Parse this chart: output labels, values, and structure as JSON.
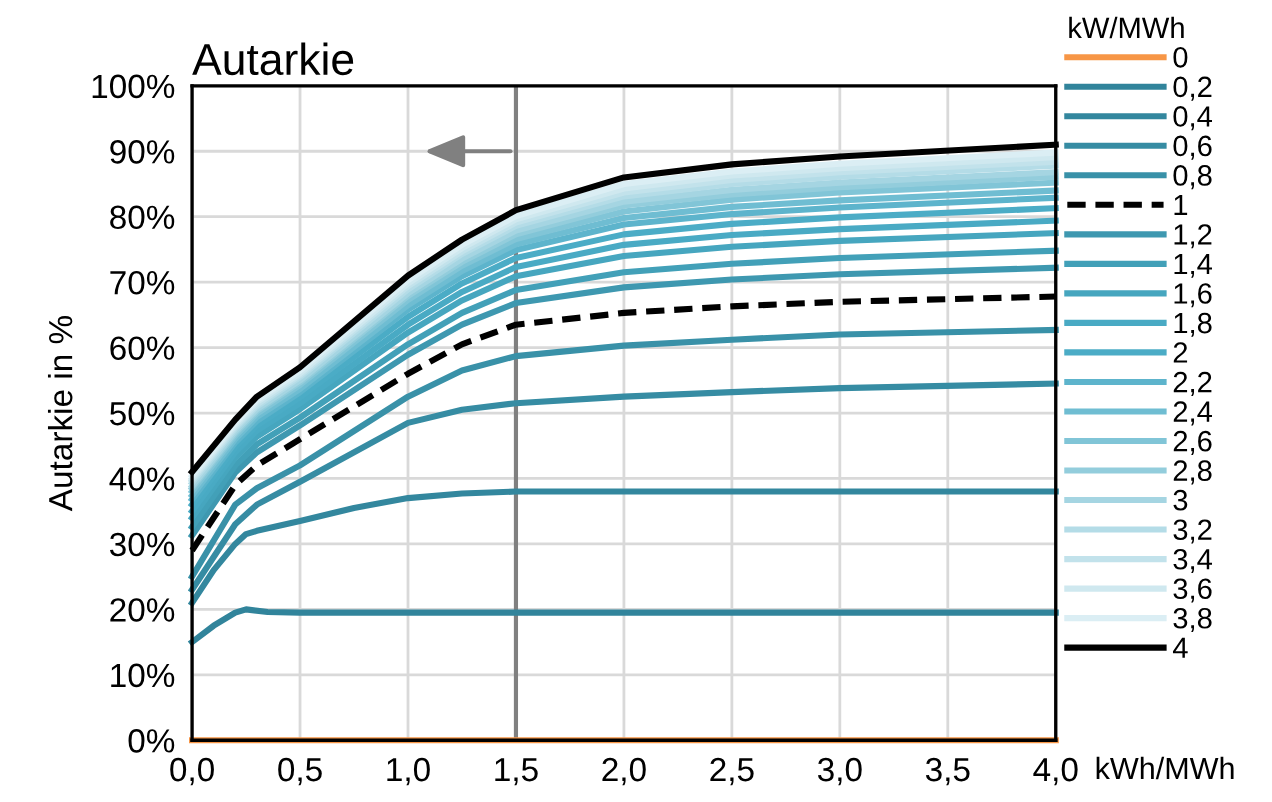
{
  "chart_data": {
    "type": "line",
    "title": "Autarkie",
    "xlabel": "kWh/MWh",
    "ylabel": "Autarkie in %",
    "legend_title": "kW/MWh",
    "legend": "right",
    "grid": true,
    "x": [
      0,
      0.2,
      0.3,
      0.5,
      1,
      1.25,
      1.5,
      2,
      2.5,
      3,
      4
    ],
    "xlim": [
      0,
      4
    ],
    "ylim": [
      0,
      100
    ],
    "xticks": [
      {
        "value": 0,
        "label": "0,0"
      },
      {
        "value": 0.5,
        "label": "0,5"
      },
      {
        "value": 1,
        "label": "1,0"
      },
      {
        "value": 1.5,
        "label": "1,5"
      },
      {
        "value": 2,
        "label": "2,0"
      },
      {
        "value": 2.5,
        "label": "2,5"
      },
      {
        "value": 3,
        "label": "3,0"
      },
      {
        "value": 3.5,
        "label": "3,5"
      },
      {
        "value": 4,
        "label": "4,0"
      }
    ],
    "yticks": [
      {
        "value": 0,
        "label": "0%"
      },
      {
        "value": 10,
        "label": "10%"
      },
      {
        "value": 20,
        "label": "20%"
      },
      {
        "value": 30,
        "label": "30%"
      },
      {
        "value": 40,
        "label": "40%"
      },
      {
        "value": 50,
        "label": "50%"
      },
      {
        "value": 60,
        "label": "60%"
      },
      {
        "value": 70,
        "label": "70%"
      },
      {
        "value": 80,
        "label": "80%"
      },
      {
        "value": 90,
        "label": "90%"
      },
      {
        "value": 100,
        "label": "100%"
      }
    ],
    "ref_lines": [
      {
        "axis": "x",
        "value": 1.5,
        "color": "#808080"
      }
    ],
    "series": [
      {
        "name": "0",
        "color": "#f79646",
        "values": [
          0,
          0,
          0,
          0,
          0,
          0,
          0,
          0,
          0,
          0,
          0
        ]
      },
      {
        "name": "0,2",
        "color": "#31849b",
        "x": [
          0,
          0.1,
          0.2,
          0.25,
          0.35,
          0.5,
          1,
          2,
          3,
          4
        ],
        "values": [
          15,
          17.5,
          19.5,
          20,
          19.6,
          19.5,
          19.5,
          19.5,
          19.5,
          19.5
        ]
      },
      {
        "name": "0,4",
        "color": "#33879e",
        "x": [
          0,
          0.1,
          0.2,
          0.25,
          0.3,
          0.5,
          0.75,
          1,
          1.25,
          1.5,
          2,
          3,
          4
        ],
        "values": [
          21,
          26,
          30,
          31.5,
          32,
          33.5,
          35.5,
          37,
          37.7,
          38,
          38,
          38,
          38
        ]
      },
      {
        "name": "0,6",
        "color": "#368ca3",
        "values": [
          23,
          33,
          36,
          39.5,
          48.5,
          50.5,
          51.5,
          52.5,
          53.2,
          53.8,
          54.5
        ]
      },
      {
        "name": "0,8",
        "color": "#3991a8",
        "values": [
          25,
          36,
          38.5,
          42,
          52.5,
          56.5,
          58.7,
          60.3,
          61.2,
          62,
          62.7
        ]
      },
      {
        "name": "1",
        "color": "#000000",
        "line_style": "dashed",
        "values": [
          29,
          39,
          42,
          46,
          56,
          60.5,
          63.5,
          65.3,
          66.3,
          67,
          67.8
        ]
      },
      {
        "name": "1,2",
        "color": "#3e98b0",
        "values": [
          31.3,
          40.9,
          44.0,
          48.1,
          58.9,
          63.5,
          66.8,
          69.2,
          70.4,
          71.2,
          72.2
        ]
      },
      {
        "name": "1,4",
        "color": "#42a0b8",
        "values": [
          32.6,
          42.0,
          45.2,
          49.3,
          60.5,
          65.3,
          68.8,
          71.5,
          72.8,
          73.7,
          74.8
        ]
      },
      {
        "name": "1,6",
        "color": "#46a6bf",
        "values": [
          34.0,
          43.2,
          46.4,
          50.6,
          62.3,
          67.2,
          70.9,
          74.0,
          75.4,
          76.3,
          77.5
        ]
      },
      {
        "name": "1,8",
        "color": "#49aac4",
        "values": [
          35.0,
          44.0,
          47.3,
          51.5,
          63.5,
          68.5,
          72.3,
          75.7,
          77.2,
          78.1,
          79.4
        ]
      },
      {
        "name": "2",
        "color": "#4bacc6",
        "values": [
          36.0,
          44.8,
          48.1,
          52.4,
          64.7,
          69.8,
          73.7,
          77.3,
          78.9,
          79.9,
          81.3
        ]
      },
      {
        "name": "2,2",
        "color": "#5db4cc",
        "values": [
          36.8,
          45.5,
          48.8,
          53.2,
          65.8,
          70.9,
          74.9,
          78.8,
          80.4,
          81.4,
          82.9
        ]
      },
      {
        "name": "2,4",
        "color": "#6fbdd2",
        "values": [
          37.4,
          46.0,
          49.4,
          53.7,
          66.5,
          71.7,
          75.8,
          79.8,
          81.5,
          82.5,
          84.0
        ]
      },
      {
        "name": "2,6",
        "color": "#81c5d7",
        "values": [
          38.0,
          46.5,
          49.9,
          54.3,
          67.3,
          72.5,
          76.6,
          80.8,
          82.6,
          83.7,
          85.2
        ]
      },
      {
        "name": "2,8",
        "color": "#93cddc",
        "values": [
          38.5,
          46.9,
          50.3,
          54.7,
          67.9,
          73.1,
          77.3,
          81.7,
          83.4,
          84.5,
          86.1
        ]
      },
      {
        "name": "3",
        "color": "#a5d5e2",
        "values": [
          38.8,
          47.2,
          50.6,
          55.0,
          68.3,
          73.6,
          77.9,
          82.3,
          84.1,
          85.2,
          86.8
        ]
      },
      {
        "name": "3,2",
        "color": "#b4dce7",
        "values": [
          39.3,
          47.6,
          51.0,
          55.5,
          68.9,
          74.3,
          78.6,
          83.1,
          85.0,
          86.1,
          87.8
        ]
      },
      {
        "name": "3,4",
        "color": "#c2e2eb",
        "values": [
          39.7,
          47.9,
          51.3,
          55.8,
          69.4,
          74.7,
          79.1,
          83.7,
          85.6,
          86.8,
          88.4
        ]
      },
      {
        "name": "3,6",
        "color": "#cfe8ef",
        "values": [
          40.0,
          48.2,
          51.7,
          56.1,
          69.8,
          75.2,
          79.6,
          84.3,
          86.3,
          87.4,
          89.1
        ]
      },
      {
        "name": "3,8",
        "color": "#dbeef4",
        "values": [
          40.4,
          48.5,
          52.0,
          56.5,
          70.3,
          75.7,
          80.1,
          85.0,
          86.9,
          88.1,
          89.8
        ]
      },
      {
        "name": "4",
        "color": "#000000",
        "values": [
          41,
          49,
          52.5,
          57,
          71,
          76.5,
          81,
          86,
          88,
          89.2,
          91
        ]
      }
    ]
  }
}
